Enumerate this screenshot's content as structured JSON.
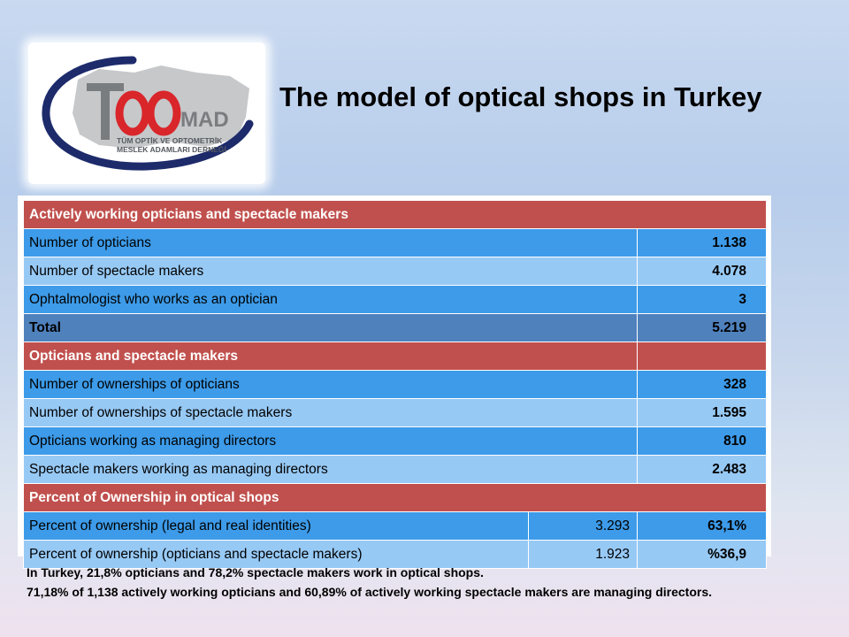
{
  "logo": {
    "big_letters": "TOOMAD",
    "subtitle_lines": [
      "TÜM OPTİK VE OPTOMETRİK",
      "MESLEK ADAMLARI DERNEĞİ"
    ]
  },
  "title": "The model of optical shops in Turkey",
  "table": {
    "section1": {
      "header": "Actively working opticians and spectacle makers",
      "rows": [
        {
          "label": "Number of opticians",
          "value": "1.138"
        },
        {
          "label": "Number of spectacle makers",
          "value": "4.078"
        },
        {
          "label": "Ophtalmologist who works as an optician",
          "value": "3"
        }
      ],
      "total": {
        "label": "Total",
        "value": "5.219"
      }
    },
    "section2": {
      "header": "Opticians and spectacle makers",
      "rows": [
        {
          "label": "Number of ownerships of opticians",
          "value": "328"
        },
        {
          "label": "Number of ownerships of spectacle makers",
          "value": "1.595"
        },
        {
          "label": "Opticians working as managing directors",
          "value": "810"
        },
        {
          "label": "Spectacle makers working as managing directors",
          "value": "2.483"
        }
      ]
    },
    "section3": {
      "header": "Percent of Ownership in optical shops",
      "rows": [
        {
          "label": "Percent of ownership (legal and real identities)",
          "count": "3.293",
          "value": "63,1%"
        },
        {
          "label": "Percent of ownership (opticians and spectacle makers)",
          "count": "1.923",
          "value": "%36,9"
        }
      ]
    }
  },
  "footnote": {
    "line1": "In Turkey, 21,8% opticians and 78,2% spectacle makers work in optical shops.",
    "line2": "71,18% of 1,138 actively working opticians and 60,89% of actively working spectacle makers are managing directors."
  },
  "colors": {
    "header_red": "#c0504d",
    "row_blue": "#3d9be9",
    "row_light_blue": "#97c9f5",
    "total_blue": "#4f81bd",
    "logo_red": "#d9262b",
    "logo_grey": "#7a7d80"
  }
}
